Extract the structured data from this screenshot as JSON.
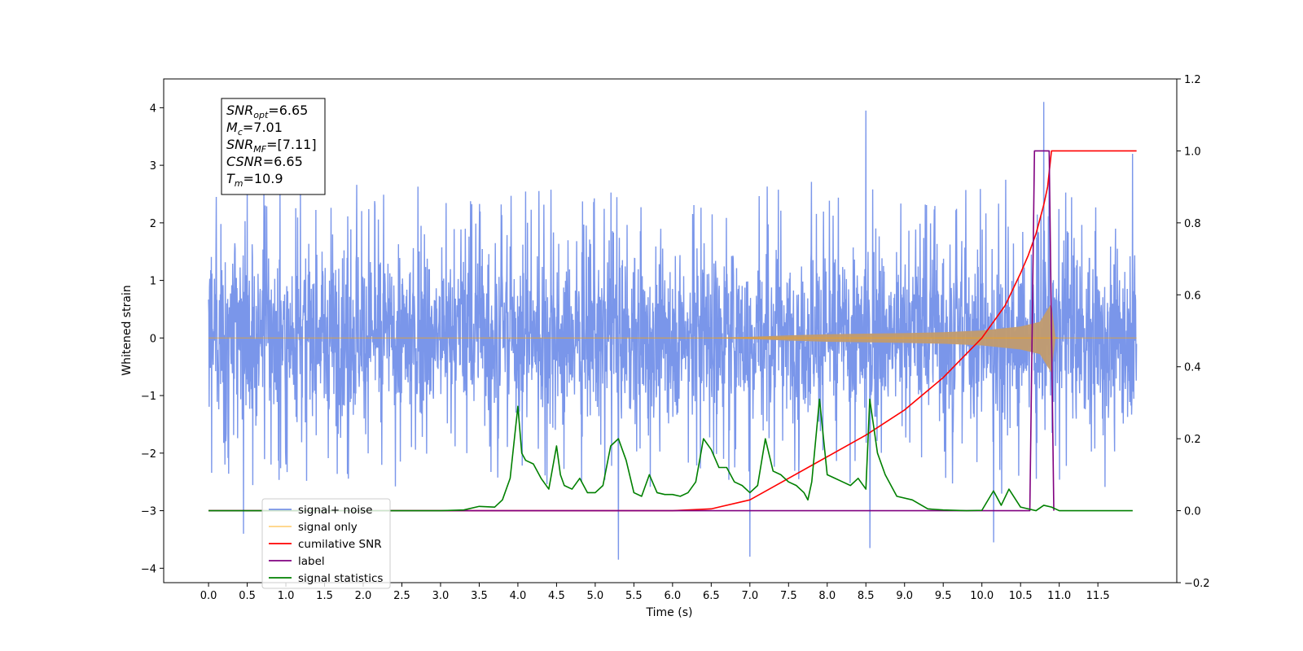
{
  "chart_data": {
    "type": "line",
    "xlabel": "Time (s)",
    "ylabel": "Whitened strain",
    "x_ticks": [
      "0.0",
      "0.5",
      "1.0",
      "1.5",
      "2.0",
      "2.5",
      "3.0",
      "3.5",
      "4.0",
      "4.5",
      "5.0",
      "5.5",
      "6.0",
      "6.5",
      "7.0",
      "7.5",
      "8.0",
      "8.5",
      "9.0",
      "9.5",
      "10.0",
      "10.5",
      "11.0",
      "11.5"
    ],
    "xlim": [
      -0.58,
      12.52
    ],
    "y_left": {
      "lim": [
        -4.25,
        4.5
      ],
      "ticks": [
        "4",
        "3",
        "2",
        "1",
        "0",
        "−1",
        "−2",
        "−3",
        "−4"
      ]
    },
    "y_right": {
      "lim": [
        -0.2,
        1.2
      ],
      "ticks": [
        "1.2",
        "1.0",
        "0.8",
        "0.6",
        "0.4",
        "0.2",
        "0.0",
        "−0.2"
      ]
    },
    "annotation": {
      "lines": [
        {
          "base": "SNR",
          "sub": "opt",
          "value": "=6.65"
        },
        {
          "base": "M",
          "sub": "c",
          "value": "=7.01"
        },
        {
          "base": "SNR",
          "sub": "MF",
          "value": "=[7.11]"
        },
        {
          "base": "CSNR",
          "sub": "",
          "value": "=6.65"
        },
        {
          "base": "T",
          "sub": "m",
          "value": "=10.9"
        }
      ]
    },
    "legend": {
      "position": "lower-left",
      "entries": [
        {
          "label": "signal+ noise",
          "color": "#4169e1",
          "alpha": 0.7
        },
        {
          "label": "signal only",
          "color": "#ffa500",
          "alpha": 0.5
        },
        {
          "label": "cumilative SNR",
          "color": "#ff0000",
          "alpha": 1
        },
        {
          "label": "label",
          "color": "#800080",
          "alpha": 1
        },
        {
          "label": "signal statistics",
          "color": "#008000",
          "alpha": 1
        }
      ]
    },
    "series": [
      {
        "name": "signal+ noise",
        "axis": "left",
        "style": "dense noise trace",
        "x_range": [
          0.0,
          12.0
        ],
        "typical_band": [
          -1.6,
          1.7
        ],
        "extremes": [
          [
            0.1,
            2.45
          ],
          [
            2.15,
            2.3
          ],
          [
            0.45,
            -3.4
          ],
          [
            5.3,
            -3.85
          ],
          [
            7.0,
            -3.8
          ],
          [
            8.5,
            3.95
          ],
          [
            8.55,
            -3.65
          ],
          [
            10.15,
            -3.55
          ],
          [
            10.8,
            4.1
          ],
          [
            11.95,
            3.2
          ]
        ]
      },
      {
        "name": "signal only",
        "axis": "left",
        "style": "chirp envelope",
        "points": [
          [
            0.0,
            0.0
          ],
          [
            6.5,
            0.003
          ],
          [
            7.0,
            0.02
          ],
          [
            7.5,
            0.045
          ],
          [
            8.0,
            0.065
          ],
          [
            8.5,
            0.075
          ],
          [
            9.0,
            0.085
          ],
          [
            9.5,
            0.1
          ],
          [
            10.0,
            0.13
          ],
          [
            10.5,
            0.2
          ],
          [
            10.75,
            0.28
          ],
          [
            10.85,
            0.5
          ],
          [
            10.9,
            0.6
          ],
          [
            10.95,
            0.02
          ],
          [
            11.0,
            0.0
          ],
          [
            12.0,
            0.0
          ]
        ]
      },
      {
        "name": "cumilative SNR",
        "axis": "right",
        "points": [
          [
            0.0,
            0.0
          ],
          [
            6.0,
            0.0
          ],
          [
            6.5,
            0.005
          ],
          [
            7.0,
            0.03
          ],
          [
            7.5,
            0.09
          ],
          [
            8.0,
            0.15
          ],
          [
            8.5,
            0.21
          ],
          [
            9.0,
            0.28
          ],
          [
            9.5,
            0.37
          ],
          [
            10.0,
            0.48
          ],
          [
            10.3,
            0.57
          ],
          [
            10.5,
            0.66
          ],
          [
            10.6,
            0.71
          ],
          [
            10.7,
            0.77
          ],
          [
            10.8,
            0.85
          ],
          [
            10.85,
            0.9
          ],
          [
            10.9,
            1.0
          ],
          [
            12.0,
            1.0
          ]
        ]
      },
      {
        "name": "label",
        "axis": "right",
        "points": [
          [
            0.0,
            0.0
          ],
          [
            10.62,
            0.0
          ],
          [
            10.68,
            1.0
          ],
          [
            10.87,
            1.0
          ],
          [
            10.93,
            0.0
          ]
        ]
      },
      {
        "name": "signal statistics",
        "axis": "right",
        "points": [
          [
            0.0,
            0.0
          ],
          [
            3.0,
            0.0
          ],
          [
            3.3,
            0.002
          ],
          [
            3.5,
            0.012
          ],
          [
            3.7,
            0.01
          ],
          [
            3.8,
            0.03
          ],
          [
            3.9,
            0.09
          ],
          [
            4.0,
            0.29
          ],
          [
            4.05,
            0.16
          ],
          [
            4.1,
            0.14
          ],
          [
            4.2,
            0.13
          ],
          [
            4.3,
            0.09
          ],
          [
            4.4,
            0.06
          ],
          [
            4.5,
            0.18
          ],
          [
            4.55,
            0.1
          ],
          [
            4.6,
            0.07
          ],
          [
            4.7,
            0.06
          ],
          [
            4.8,
            0.09
          ],
          [
            4.9,
            0.05
          ],
          [
            5.0,
            0.05
          ],
          [
            5.1,
            0.07
          ],
          [
            5.2,
            0.18
          ],
          [
            5.3,
            0.2
          ],
          [
            5.4,
            0.14
          ],
          [
            5.5,
            0.05
          ],
          [
            5.6,
            0.04
          ],
          [
            5.7,
            0.1
          ],
          [
            5.8,
            0.05
          ],
          [
            5.9,
            0.045
          ],
          [
            6.0,
            0.045
          ],
          [
            6.1,
            0.04
          ],
          [
            6.2,
            0.05
          ],
          [
            6.3,
            0.08
          ],
          [
            6.4,
            0.2
          ],
          [
            6.5,
            0.17
          ],
          [
            6.6,
            0.12
          ],
          [
            6.7,
            0.12
          ],
          [
            6.8,
            0.08
          ],
          [
            6.9,
            0.07
          ],
          [
            7.0,
            0.05
          ],
          [
            7.1,
            0.07
          ],
          [
            7.2,
            0.2
          ],
          [
            7.3,
            0.11
          ],
          [
            7.4,
            0.1
          ],
          [
            7.5,
            0.08
          ],
          [
            7.6,
            0.07
          ],
          [
            7.7,
            0.05
          ],
          [
            7.75,
            0.03
          ],
          [
            7.8,
            0.08
          ],
          [
            7.9,
            0.31
          ],
          [
            8.0,
            0.1
          ],
          [
            8.1,
            0.09
          ],
          [
            8.2,
            0.08
          ],
          [
            8.3,
            0.07
          ],
          [
            8.4,
            0.09
          ],
          [
            8.5,
            0.06
          ],
          [
            8.55,
            0.31
          ],
          [
            8.65,
            0.16
          ],
          [
            8.75,
            0.1
          ],
          [
            8.9,
            0.04
          ],
          [
            9.1,
            0.03
          ],
          [
            9.3,
            0.005
          ],
          [
            9.5,
            0.002
          ],
          [
            9.8,
            0.0
          ],
          [
            10.0,
            0.001
          ],
          [
            10.15,
            0.055
          ],
          [
            10.25,
            0.015
          ],
          [
            10.35,
            0.06
          ],
          [
            10.5,
            0.01
          ],
          [
            10.7,
            0.0
          ],
          [
            10.8,
            0.015
          ],
          [
            10.9,
            0.01
          ],
          [
            11.0,
            0.0
          ],
          [
            11.95,
            0.0
          ]
        ]
      }
    ]
  }
}
